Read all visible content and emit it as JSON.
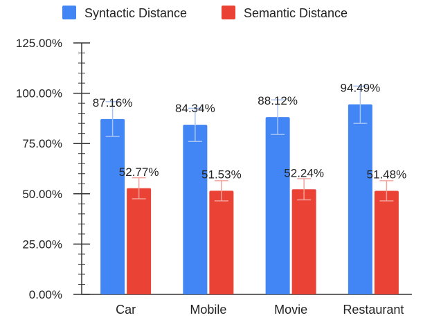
{
  "chart_data": {
    "type": "bar",
    "categories": [
      "Car",
      "Mobile",
      "Movie",
      "Restaurant"
    ],
    "series": [
      {
        "name": "Syntactic Distance",
        "color": "#4285f4",
        "values": [
          87.16,
          84.34,
          88.12,
          94.49
        ],
        "labels": [
          "87.16%",
          "84.34%",
          "88.12%",
          "94.49%"
        ],
        "error_low": [
          78.5,
          76.0,
          79.5,
          85.0
        ],
        "error_high": [
          95.8,
          92.5,
          96.7,
          103.5
        ]
      },
      {
        "name": "Semantic Distance",
        "color": "#ea4335",
        "values": [
          52.77,
          51.53,
          52.24,
          51.48
        ],
        "labels": [
          "52.77%",
          "51.53%",
          "52.24%",
          "51.48%"
        ],
        "error_low": [
          47.5,
          46.5,
          47.0,
          46.5
        ],
        "error_high": [
          58.0,
          56.5,
          57.5,
          56.5
        ]
      }
    ],
    "ylim": [
      0,
      125
    ],
    "yticks": [
      0,
      25,
      50,
      75,
      100,
      125
    ],
    "ytick_labels": [
      "0.00%",
      "25.00%",
      "50.00%",
      "75.00%",
      "100.00%",
      "125.00%"
    ],
    "legend_position": "top",
    "grid": false,
    "title": "",
    "xlabel": "",
    "ylabel": ""
  }
}
